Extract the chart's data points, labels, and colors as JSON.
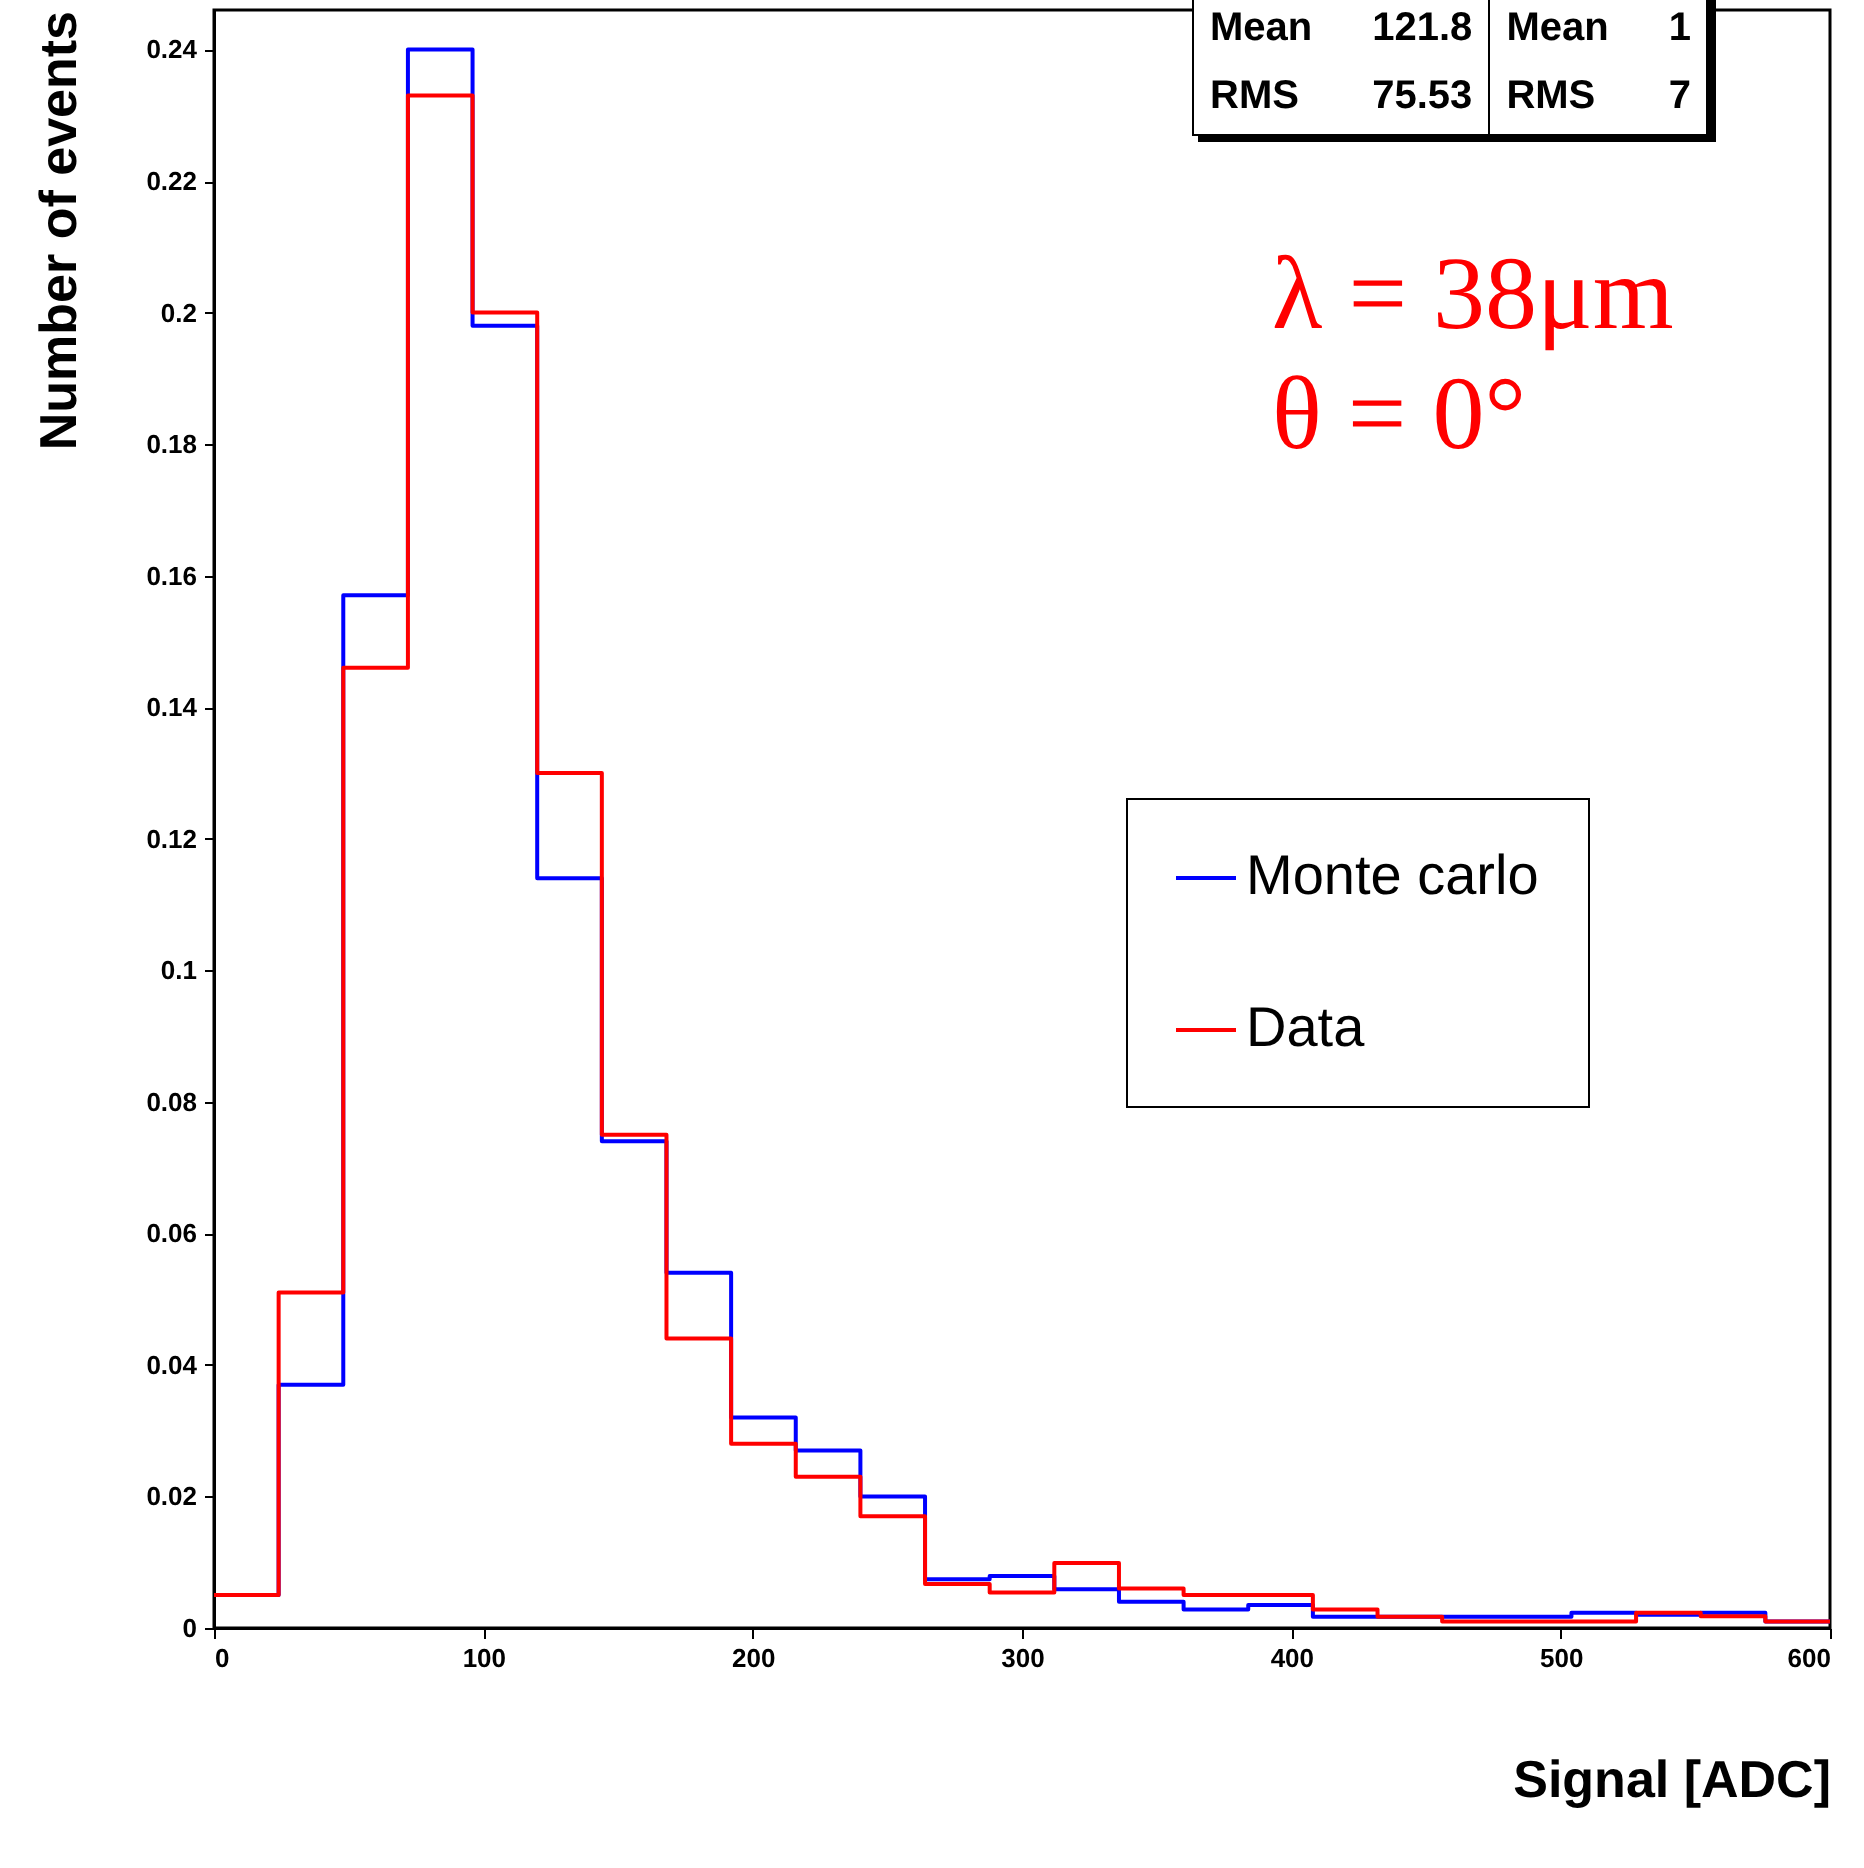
{
  "chart_data": {
    "type": "histogram",
    "xlabel": "Signal [ADC]",
    "ylabel": "Number of events",
    "bins": [
      0,
      24,
      48,
      72,
      96,
      120,
      144,
      168,
      192,
      216,
      240,
      264,
      288,
      312,
      336,
      360,
      384,
      408,
      432,
      456,
      480,
      504,
      528,
      552,
      576,
      600
    ],
    "series": [
      {
        "name": "Monte carlo",
        "color": "#0000ff",
        "values": [
          0.005,
          0.037,
          0.157,
          0.24,
          0.198,
          0.114,
          0.074,
          0.054,
          0.032,
          0.027,
          0.02,
          0.0074,
          0.0079,
          0.0059,
          0.004,
          0.0028,
          0.0035,
          0.0017,
          0.0017,
          0.0017,
          0.0017,
          0.0023,
          0.002,
          0.0023,
          0.001
        ]
      },
      {
        "name": "Data",
        "color": "#ff0000",
        "values": [
          0.005,
          0.051,
          0.146,
          0.233,
          0.2,
          0.13,
          0.075,
          0.044,
          0.028,
          0.023,
          0.017,
          0.0067,
          0.0054,
          0.0099,
          0.006,
          0.005,
          0.005,
          0.0028,
          0.0017,
          0.001,
          0.001,
          0.001,
          0.0023,
          0.0018,
          0.001
        ]
      }
    ],
    "xlim": [
      0,
      600
    ],
    "xticks": [
      0,
      100,
      200,
      300,
      400,
      500,
      600
    ],
    "ylim": [
      0,
      0.246
    ],
    "yticks": [
      0,
      0.02,
      0.04,
      0.06,
      0.08,
      0.1,
      0.12,
      0.14,
      0.16,
      0.18,
      0.2,
      0.22,
      0.24
    ],
    "legend": "right",
    "annotations": [
      "Mean 121.8",
      "RMS 75.53",
      "Mean 1",
      "RMS 7",
      "λ = 38μm",
      "θ = 0°"
    ]
  }
}
